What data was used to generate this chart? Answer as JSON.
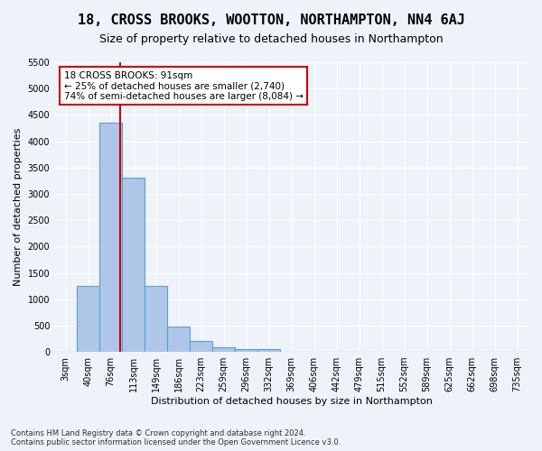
{
  "title": "18, CROSS BROOKS, WOOTTON, NORTHAMPTON, NN4 6AJ",
  "subtitle": "Size of property relative to detached houses in Northampton",
  "xlabel": "Distribution of detached houses by size in Northampton",
  "ylabel": "Number of detached properties",
  "footer_line1": "Contains HM Land Registry data © Crown copyright and database right 2024.",
  "footer_line2": "Contains public sector information licensed under the Open Government Licence v3.0.",
  "bin_labels": [
    "3sqm",
    "40sqm",
    "76sqm",
    "113sqm",
    "149sqm",
    "186sqm",
    "223sqm",
    "259sqm",
    "296sqm",
    "332sqm",
    "369sqm",
    "406sqm",
    "442sqm",
    "479sqm",
    "515sqm",
    "552sqm",
    "589sqm",
    "625sqm",
    "662sqm",
    "698sqm",
    "735sqm"
  ],
  "bar_values": [
    0,
    1250,
    4350,
    3300,
    1250,
    480,
    210,
    90,
    60,
    60,
    0,
    0,
    0,
    0,
    0,
    0,
    0,
    0,
    0,
    0,
    0
  ],
  "bar_color": "#aec6e8",
  "bar_edge_color": "#5a9fd4",
  "annotation_text": "18 CROSS BROOKS: 91sqm\n← 25% of detached houses are smaller (2,740)\n74% of semi-detached houses are larger (8,084) →",
  "annotation_box_color": "#ffffff",
  "annotation_box_edgecolor": "#cc0000",
  "red_line_color": "#cc0000",
  "ylim": [
    0,
    5500
  ],
  "yticks": [
    0,
    500,
    1000,
    1500,
    2000,
    2500,
    3000,
    3500,
    4000,
    4500,
    5000,
    5500
  ],
  "background_color": "#eef2f9",
  "grid_color": "#ffffff",
  "title_fontsize": 11,
  "subtitle_fontsize": 9,
  "axis_fontsize": 8,
  "tick_fontsize": 7
}
